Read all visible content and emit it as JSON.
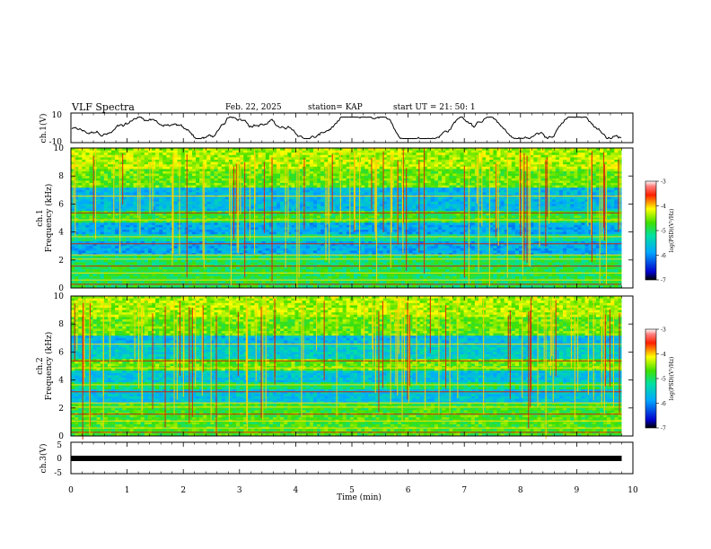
{
  "header": {
    "title": "VLF Spectra",
    "date": "Feb. 22, 2025",
    "station": "station= KAP",
    "start": "start  UT =   21: 50: 1"
  },
  "chart_data": [
    {
      "type": "line",
      "name": "ch1-waveform",
      "ylabel": "ch.1(V)",
      "ylim": [
        -10,
        10
      ],
      "y_ticks": [
        "10",
        "-10"
      ],
      "x_range_min": [
        0,
        9.8
      ],
      "description_series": "oscillating voltage trace with amplitude roughly -8 to 8 V"
    },
    {
      "type": "heatmap",
      "name": "ch1-spectrogram",
      "ylabel": "ch.1\nFrequency (kHz)",
      "ylabel_line1": "ch.1",
      "ylabel_line2": "Frequency (kHz)",
      "ylim": [
        0,
        10
      ],
      "y_ticks": [
        "0",
        "2",
        "4",
        "6",
        "8",
        "10"
      ],
      "x_range_min": [
        0,
        9.8
      ],
      "colorbar": {
        "label": "log(PSD)(V²/Hz)",
        "range": [
          -7,
          -3
        ],
        "ticks": [
          "-3",
          "-4",
          "-5",
          "-6",
          "-7"
        ]
      }
    },
    {
      "type": "heatmap",
      "name": "ch2-spectrogram",
      "ylabel": "ch.2\nFrequency (kHz)",
      "ylabel_line1": "ch.2",
      "ylabel_line2": "Frequency (kHz)",
      "ylim": [
        0,
        10
      ],
      "y_ticks": [
        "0",
        "2",
        "4",
        "6",
        "8",
        "10"
      ],
      "x_range_min": [
        0,
        9.8
      ],
      "colorbar": {
        "label": "log(PSD)(V²/Hz)",
        "range": [
          -7,
          -3
        ],
        "ticks": [
          "-3",
          "-4",
          "-5",
          "-6",
          "-7"
        ]
      }
    },
    {
      "type": "line",
      "name": "ch3-waveform",
      "ylabel": "ch.3(V)",
      "ylim": [
        -5,
        5
      ],
      "y_ticks": [
        "5",
        "0",
        "-5"
      ],
      "level": 0,
      "x_range_min": [
        0,
        9.8
      ]
    }
  ],
  "xaxis": {
    "label": "Time  (min)",
    "xlim": [
      0,
      10
    ],
    "ticks": [
      "0",
      "1",
      "2",
      "3",
      "4",
      "5",
      "6",
      "7",
      "8",
      "9",
      "10"
    ]
  }
}
